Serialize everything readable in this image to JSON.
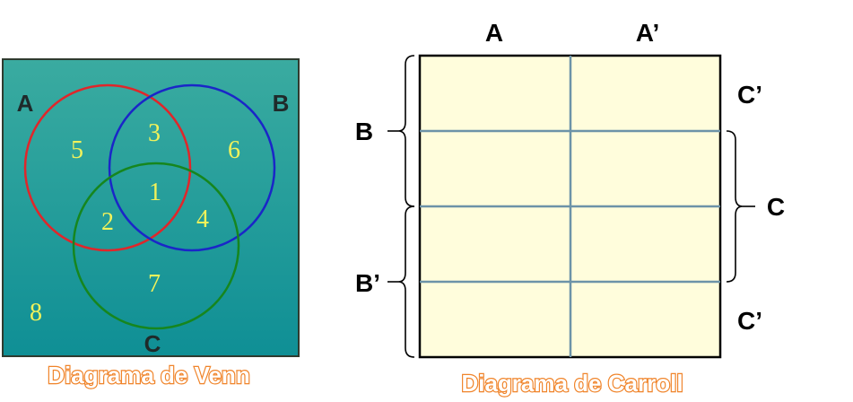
{
  "venn": {
    "labels": {
      "a": "A",
      "b": "B",
      "c": "C"
    },
    "regions": {
      "only_a": "5",
      "a_and_b": "3",
      "only_b": "6",
      "a_b_c": "1",
      "a_and_c": "2",
      "b_and_c": "4",
      "only_c": "7",
      "outside": "8"
    },
    "caption": "Diagrama de Venn",
    "colors": {
      "background": "#1f9a98",
      "circle_a": "#e0262a",
      "circle_b": "#1a26c8",
      "circle_c": "#16861e",
      "numbers": "#f2f25a",
      "caption_outline": "#f0842a"
    }
  },
  "carroll": {
    "column_labels": [
      "A",
      "A’"
    ],
    "row_labels": {
      "b": "B",
      "b_prime": "B’",
      "c": "C",
      "c_prime_top": "C’",
      "c_prime_bottom": "C’"
    },
    "caption": "Diagrama de Carroll",
    "colors": {
      "cell_fill": "#fffddc",
      "grid_line": "#6c93a8",
      "border": "#000000"
    }
  }
}
